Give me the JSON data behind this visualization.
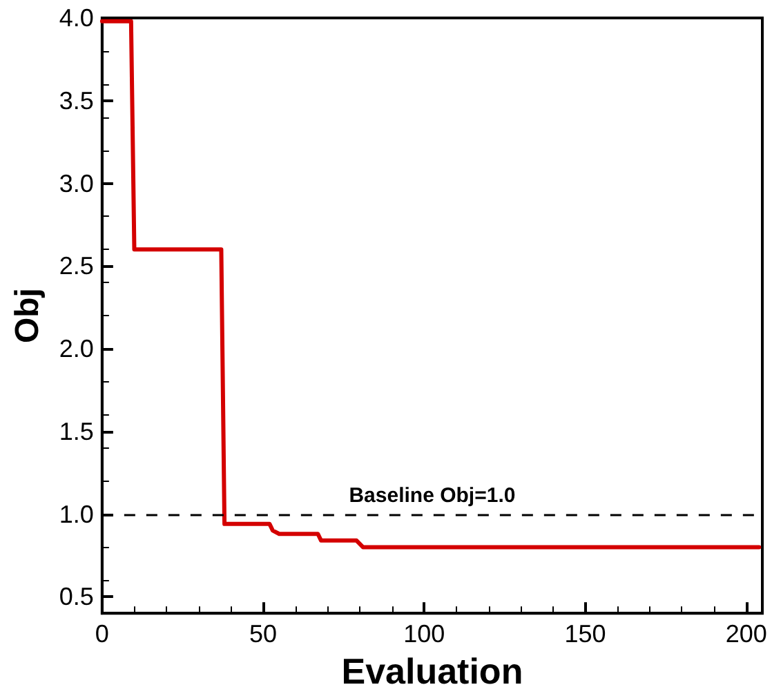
{
  "chart_data": {
    "type": "line",
    "xlabel": "Evaluation",
    "ylabel": "Obj",
    "x": [
      0,
      9,
      10,
      37,
      38,
      52,
      53,
      55,
      67,
      68,
      79,
      80,
      81,
      204
    ],
    "series": [
      {
        "color": "#d40000",
        "values": [
          3.98,
          3.98,
          2.6,
          2.6,
          0.94,
          0.94,
          0.9,
          0.88,
          0.88,
          0.84,
          0.84,
          0.82,
          0.8,
          0.8
        ]
      }
    ],
    "xlim": [
      0,
      205
    ],
    "xticks": [
      0,
      50,
      100,
      150,
      200
    ],
    "ylim": [
      0.4,
      4.0
    ],
    "yticks": [
      0.5,
      {
        "value": 1,
        "label": "1.0"
      },
      1.5,
      {
        "value": 2,
        "label": "2.0"
      },
      2.5,
      {
        "value": 3,
        "label": "3.0"
      },
      3.5,
      {
        "value": 4,
        "label": "4.0"
      }
    ],
    "ref_lines": [
      {
        "axis": "y",
        "value": 1.0,
        "label": "Baseline Obj=1.0",
        "color": "#000000",
        "line_style": "dashed"
      }
    ],
    "grid": false,
    "marker": "none",
    "line_style": "solid"
  }
}
